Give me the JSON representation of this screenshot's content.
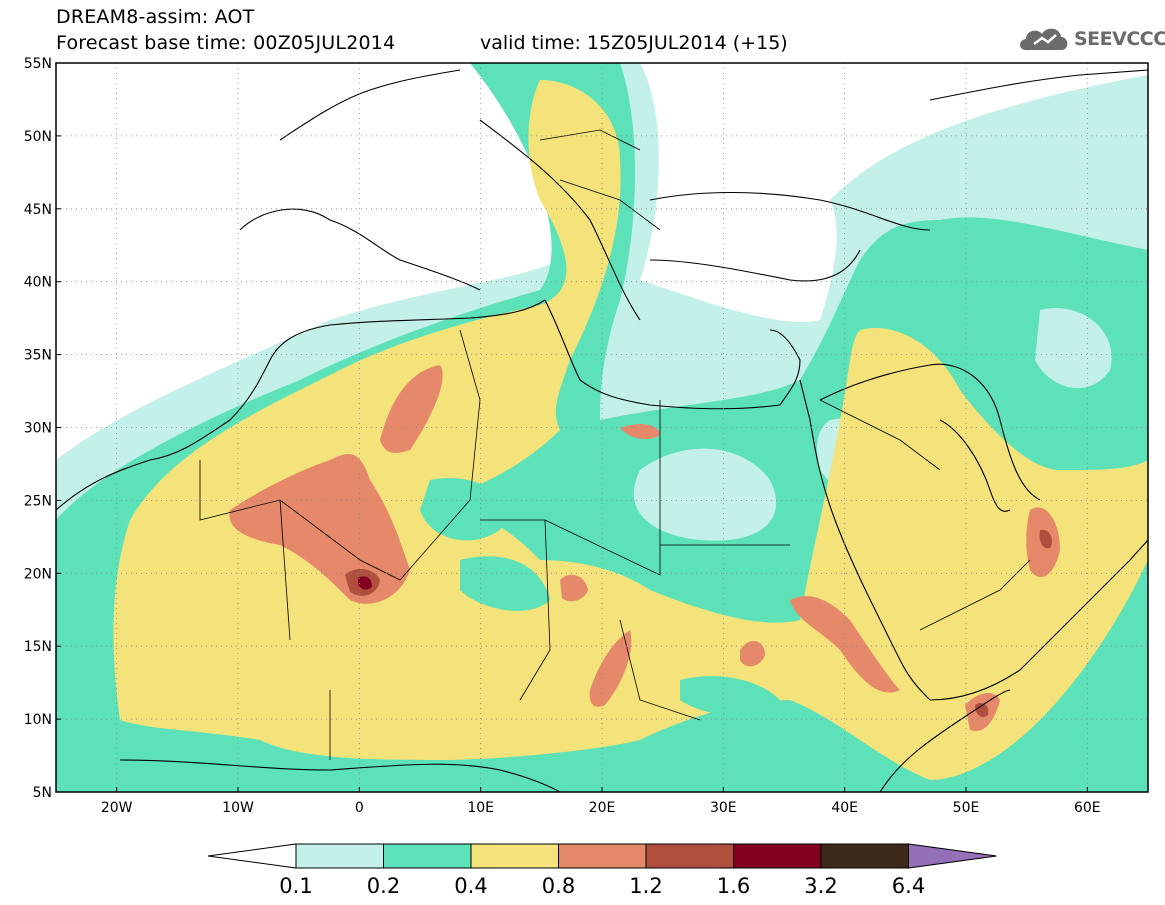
{
  "header": {
    "line1": "DREAM8-assim: AOT",
    "line2": "Forecast base time: 00Z05JUL2014",
    "valid": "valid time: 15Z05JUL2014 (+15)"
  },
  "logo": {
    "text": "SEEVCCC",
    "icon": "cloud-icon"
  },
  "map": {
    "lat_labels": [
      "55N",
      "50N",
      "45N",
      "40N",
      "35N",
      "30N",
      "25N",
      "20N",
      "15N",
      "10N",
      "5N"
    ],
    "lon_labels": [
      "20W",
      "10W",
      "0",
      "10E",
      "20E",
      "30E",
      "40E",
      "50E",
      "60E"
    ],
    "lon_range": [
      -25,
      65
    ],
    "lat_range": [
      5,
      55
    ],
    "grid": true
  },
  "colorbar": {
    "levels": [
      "0.1",
      "0.2",
      "0.4",
      "0.8",
      "1.2",
      "1.6",
      "3.2",
      "6.4"
    ],
    "colors": [
      "#c3f0e8",
      "#5ce1b9",
      "#f4e27a",
      "#e5896a",
      "#b04f3e",
      "#80001e",
      "#3e2a1a"
    ],
    "under_color": "#ffffff",
    "over_color": "#9370b8"
  }
}
